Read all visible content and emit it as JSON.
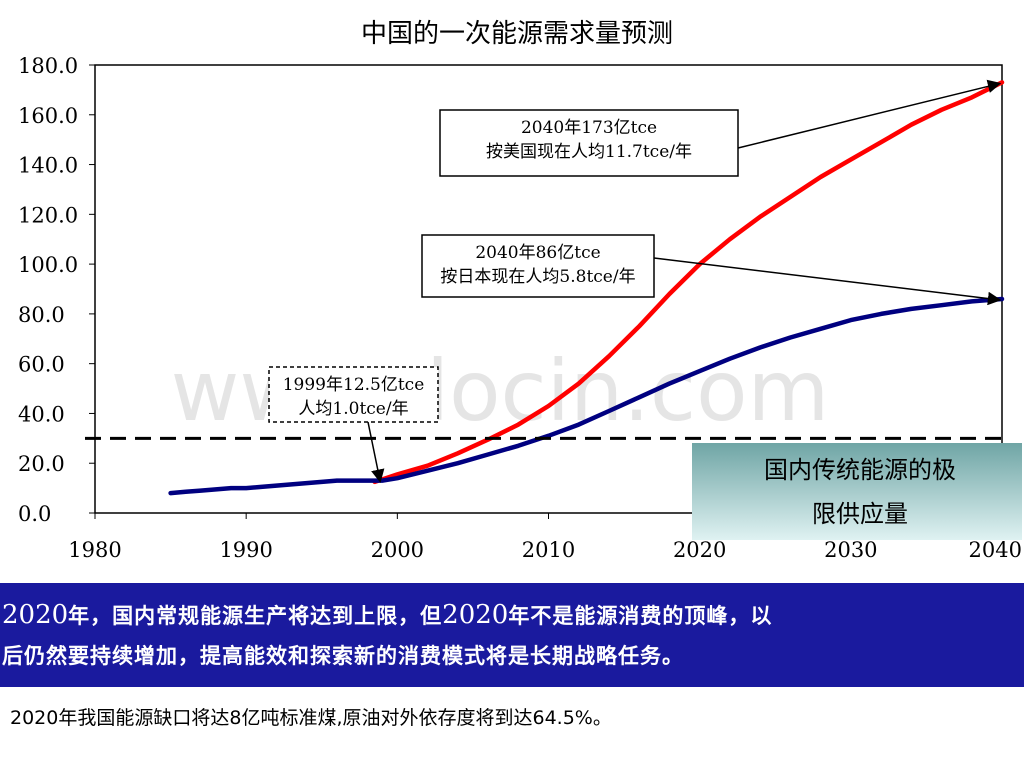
{
  "chart_data": {
    "type": "line",
    "title": "中国的一次能源需求量预测",
    "xlabel": "",
    "ylabel": "",
    "xlim": [
      1980,
      2040
    ],
    "ylim": [
      0,
      180
    ],
    "x_ticks": [
      1980,
      1990,
      2000,
      2010,
      2020,
      2030,
      2040
    ],
    "y_ticks": [
      "0.0",
      "20.0",
      "40.0",
      "60.0",
      "80.0",
      "100.0",
      "120.0",
      "140.0",
      "160.0",
      "180.0"
    ],
    "grid": false,
    "legend": "none",
    "series": [
      {
        "color": "#ff0000",
        "x": [
          1998.5,
          2000,
          2002,
          2004,
          2006,
          2008,
          2010,
          2012,
          2014,
          2016,
          2018,
          2020,
          2022,
          2024,
          2026,
          2028,
          2030,
          2032,
          2034,
          2036,
          2038,
          2040
        ],
        "values": [
          12.5,
          15.5,
          19,
          24,
          29.5,
          35.5,
          43,
          52,
          63,
          75,
          88,
          100,
          110,
          119,
          127,
          135,
          142,
          149,
          156,
          162,
          167,
          173
        ]
      },
      {
        "color": "#000080",
        "x": [
          1985,
          1986,
          1987,
          1988,
          1989,
          1990,
          1991,
          1992,
          1993,
          1994,
          1995,
          1996,
          1997,
          1998,
          1999,
          2000,
          2002,
          2004,
          2006,
          2008,
          2010,
          2012,
          2014,
          2016,
          2018,
          2020,
          2022,
          2024,
          2026,
          2028,
          2030,
          2032,
          2034,
          2036,
          2038,
          2040
        ],
        "values": [
          8,
          8.5,
          9,
          9.5,
          10,
          10,
          10.5,
          11,
          11.5,
          12,
          12.5,
          13,
          13,
          13,
          13,
          14,
          17,
          20,
          23.5,
          27,
          31,
          35.5,
          41,
          46.5,
          52,
          57,
          62,
          66.5,
          70.5,
          74,
          77.5,
          80,
          82,
          83.5,
          85,
          86
        ]
      }
    ],
    "reference_line": {
      "value": 30,
      "style": "dashed",
      "color": "#000000"
    },
    "annotations": [
      {
        "lines": [
          "2040年173亿tce",
          "按美国现在人均11.7tce/年"
        ],
        "target": [
          2040,
          173
        ]
      },
      {
        "lines": [
          "2040年86亿tce",
          "按日本现在人均5.8tce/年"
        ],
        "target": [
          2040,
          86
        ]
      },
      {
        "lines": [
          "1999年12.5亿tce",
          "人均1.0tce/年"
        ],
        "target": [
          1999,
          13
        ]
      }
    ],
    "limit_box": {
      "lines": [
        "国内传统能源的极",
        "限供应量"
      ]
    }
  },
  "watermark": "www.docin.com",
  "banner": {
    "line1": {
      "y1": "2020",
      "t1": "年，国内常规能源生产将达到上限，但",
      "y2": "2020",
      "t2": "年不是能源消费的顶峰，以"
    },
    "line2": "后仍然要持续增加，提高能效和探索新的消费模式将是长期战略任务。"
  },
  "footer": "2020年我国能源缺口将达8亿吨标准煤,原油对外依存度将到达64.5%。",
  "colors": {
    "banner_bg": "#1a1a9e",
    "limit_box_top": "#6fa5a5",
    "limit_box_bottom": "#dff2f2"
  }
}
